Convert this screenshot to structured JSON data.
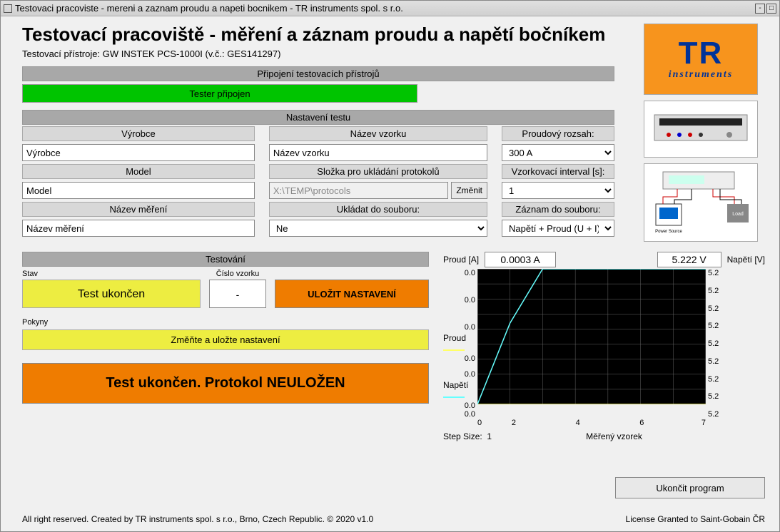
{
  "window": {
    "title": "Testovaci pracoviste - mereni a zaznam proudu a napeti bocnikem - TR instruments spol. s r.o."
  },
  "header": {
    "title": "Testovací pracoviště - měření a záznam proudu a napětí bočníkem",
    "subtitle": "Testovací přístroje: GW INSTEK PCS-1000I (v.č.: GES141297)"
  },
  "logo": {
    "top": "TR",
    "bot": "instruments"
  },
  "section_connect": {
    "title": "Připojení testovacích přístrojů",
    "status": "Tester připojen",
    "status_bg": "#00c400"
  },
  "section_settings": {
    "title": "Nastavení testu",
    "vyrobce_hdr": "Výrobce",
    "vyrobce_val": "Výrobce",
    "model_hdr": "Model",
    "model_val": "Model",
    "nazevmer_hdr": "Název měření",
    "nazevmer_val": "Název měření",
    "nazevvzorku_hdr": "Název vzorku",
    "nazevvzorku_val": "Název vzorku",
    "slozka_hdr": "Složka pro ukládání protokolů",
    "slozka_val": "X:\\TEMP\\protocols",
    "zmenit": "Změnit",
    "ukladat_hdr": "Ukládat do souboru:",
    "ukladat_val": "Ne",
    "rozsah_hdr": "Proudový rozsah:",
    "rozsah_val": "300 A",
    "interval_hdr": "Vzorkovací interval [s]:",
    "interval_val": "1",
    "zaznam_hdr": "Záznam do souboru:",
    "zaznam_val": "Napětí + Proud (U + I)"
  },
  "section_test": {
    "title": "Testování",
    "stav_lbl": "Stav",
    "stav_val": "Test ukončen",
    "stav_bg": "#eded41",
    "cislo_lbl": "Číslo vzorku",
    "cislo_val": "-",
    "ulozit": "ULOŽIT NASTAVENÍ",
    "ulozit_bg": "#ef7c00",
    "pokyny_lbl": "Pokyny",
    "pokyny_val": "Změňte a uložte nastavení",
    "pokyny_bg": "#eded41",
    "final": "Test ukončen. Protokol NEULOŽEN",
    "final_bg": "#ef7c00"
  },
  "chart": {
    "proud_lbl": "Proud [A]",
    "proud_val": "0.0003 A",
    "napeti_lbl": "Napětí [V]",
    "napeti_val": "5.222 V",
    "series1_name": "Proud",
    "series1_color": "#ffff66",
    "series2_name": "Napětí",
    "series2_color": "#66ffff",
    "xlabel": "Měřený vzorek",
    "step_lbl": "Step Size:",
    "step_val": "1",
    "xvals": [
      0,
      2,
      4,
      6,
      7
    ],
    "xticks": [
      "0",
      "2",
      "4",
      "6",
      "7"
    ],
    "y1_ticks": [
      "0.0",
      "0.0",
      "0.0",
      "0.0",
      "0.0",
      "0.0",
      "0.0",
      "0.0",
      "0.0"
    ],
    "y2_ticks": [
      "5.2",
      "5.2",
      "5.2",
      "5.2",
      "5.2",
      "5.2",
      "5.2",
      "5.2",
      "5.2"
    ],
    "bg": "#000000",
    "grid": "#666666",
    "proud_points": [
      [
        0,
        0
      ],
      [
        1,
        0
      ],
      [
        2,
        0
      ],
      [
        3,
        0
      ],
      [
        4,
        0
      ],
      [
        5,
        0
      ],
      [
        6,
        0
      ],
      [
        7,
        0
      ]
    ],
    "napeti_points": [
      [
        0,
        0
      ],
      [
        1,
        0.6
      ],
      [
        2,
        1.0
      ],
      [
        3,
        1.0
      ],
      [
        4,
        1.0
      ],
      [
        5,
        1.0
      ],
      [
        6,
        1.0
      ],
      [
        7,
        1.0
      ]
    ]
  },
  "ukoncit": "Ukončit program",
  "footer": {
    "left": "All right reserved. Created by TR instruments spol. s r.o., Brno, Czech Republic. © 2020 v1.0",
    "right": "License Granted to Saint-Gobain ČR"
  }
}
